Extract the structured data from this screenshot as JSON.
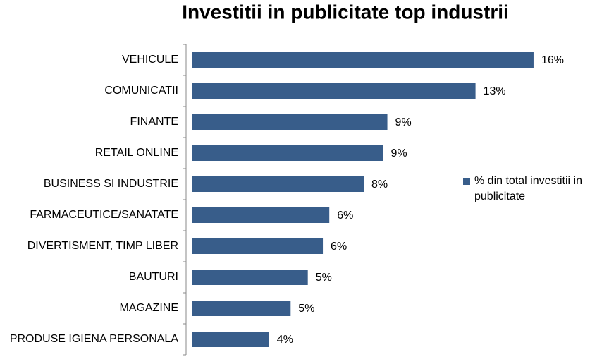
{
  "chart_data": {
    "type": "bar",
    "orientation": "horizontal",
    "title": "Investitii in publicitate top industrii",
    "categories": [
      "VEHICULE",
      "COMUNICATII",
      "FINANTE",
      "RETAIL ONLINE",
      "BUSINESS SI INDUSTRIE",
      "FARMACEUTICE/SANATATE",
      "DIVERTISMENT, TIMP LIBER",
      "BAUTURI",
      "MAGAZINE",
      "PRODUSE IGIENA PERSONALA"
    ],
    "series": [
      {
        "name": "% din total investitii in publicitate",
        "color": "#385d8a",
        "values": [
          15.9,
          13.2,
          9.1,
          8.9,
          8.0,
          6.4,
          6.1,
          5.4,
          4.6,
          3.6
        ],
        "value_labels": [
          "16%",
          "13%",
          "9%",
          "9%",
          "8%",
          "6%",
          "6%",
          "5%",
          "5%",
          "4%"
        ]
      }
    ],
    "xlim": [
      0,
      16
    ],
    "legend": "right"
  }
}
